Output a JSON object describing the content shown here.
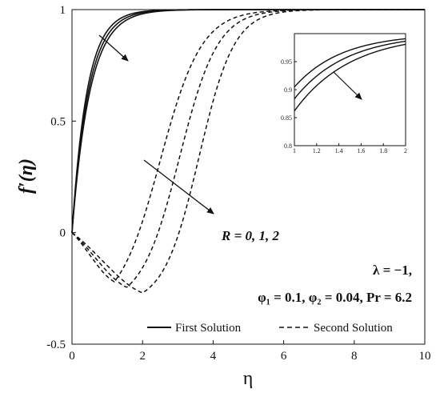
{
  "chart_data": {
    "type": "line",
    "xlabel": "η",
    "ylabel": "f′(η)",
    "xlim": [
      0,
      10
    ],
    "ylim": [
      -0.5,
      1
    ],
    "xticks": [
      0,
      2,
      4,
      6,
      8,
      10
    ],
    "yticks": [
      -0.5,
      0,
      0.5,
      1
    ],
    "grid": false,
    "legend_position": "bottom-right",
    "series": [
      {
        "name": "First Solution",
        "style": "solid",
        "R": 0,
        "curve": "first",
        "k": 2.35
      },
      {
        "name": "First Solution",
        "style": "solid",
        "R": 1,
        "curve": "first",
        "k": 2.15
      },
      {
        "name": "First Solution",
        "style": "solid",
        "R": 2,
        "curve": "first",
        "k": 1.98
      },
      {
        "name": "Second Solution",
        "style": "dashed",
        "R": 0,
        "curve": "second",
        "min_x": 1.2,
        "min_y": -0.22,
        "mid_x": 2.5,
        "steep": 1.7
      },
      {
        "name": "Second Solution",
        "style": "dashed",
        "R": 1,
        "curve": "second",
        "min_x": 1.55,
        "min_y": -0.245,
        "mid_x": 3.05,
        "steep": 1.85
      },
      {
        "name": "Second Solution",
        "style": "dashed",
        "R": 2,
        "curve": "second",
        "min_x": 2.0,
        "min_y": -0.27,
        "mid_x": 3.6,
        "steep": 2.0
      }
    ],
    "annotations": {
      "r_label": "R = 0, 1, 2",
      "lambda_label": "λ = −1,",
      "params_label": "φ₁ = 0.1, φ₂ = 0.04, Pr = 6.2"
    },
    "inset": {
      "xlim": [
        1,
        2
      ],
      "ylim": [
        0.8,
        1
      ],
      "xticks": [
        1,
        1.2,
        1.4,
        1.6,
        1.8,
        2
      ],
      "yticks": [
        0.8,
        0.85,
        0.9,
        0.95
      ],
      "xtick_labels": [
        "1",
        "1.2",
        "1.4",
        "1.6",
        "1.8",
        "2"
      ],
      "ytick_labels": [
        "0.8",
        "0.85",
        "0.9",
        "0.95"
      ]
    }
  },
  "legend": {
    "first": "First Solution",
    "second": "Second Solution"
  },
  "labels": {
    "xlabel": "η",
    "ylabel": "f′(η)",
    "r_label": "R = 0, 1, 2",
    "lambda_label": "λ = −1,",
    "params_label": "φ₁ = 0.1, φ₂ = 0.04, Pr = 6.2"
  }
}
